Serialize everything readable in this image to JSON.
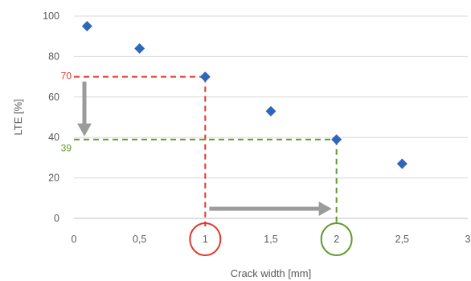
{
  "chart_data": {
    "type": "scatter",
    "xlabel": "Crack width [mm]",
    "ylabel": "LTE [%]",
    "xlim": [
      0,
      3
    ],
    "ylim": [
      0,
      100
    ],
    "x_ticks": [
      0,
      0.5,
      1,
      1.5,
      2,
      2.5,
      3
    ],
    "x_tick_labels": [
      "0",
      "0,5",
      "1",
      "1,5",
      "2",
      "2,5",
      "3"
    ],
    "y_ticks": [
      0,
      20,
      40,
      60,
      80,
      100
    ],
    "y_tick_labels": [
      "0",
      "20",
      "40",
      "60",
      "80",
      "100"
    ],
    "grid": "horizontal",
    "points": [
      {
        "x": 0.1,
        "y": 95
      },
      {
        "x": 0.5,
        "y": 84
      },
      {
        "x": 1.0,
        "y": 70
      },
      {
        "x": 1.5,
        "y": 53
      },
      {
        "x": 2.0,
        "y": 39
      },
      {
        "x": 2.5,
        "y": 27
      }
    ],
    "annotations": [
      {
        "label": "70",
        "x": 1,
        "y": 70,
        "color": "#e2362c"
      },
      {
        "label": "39",
        "x": 2,
        "y": 39,
        "color": "#5e9a2e"
      }
    ],
    "marker_color": "#2e66b9",
    "arrow_color": "#9b9b9b"
  }
}
